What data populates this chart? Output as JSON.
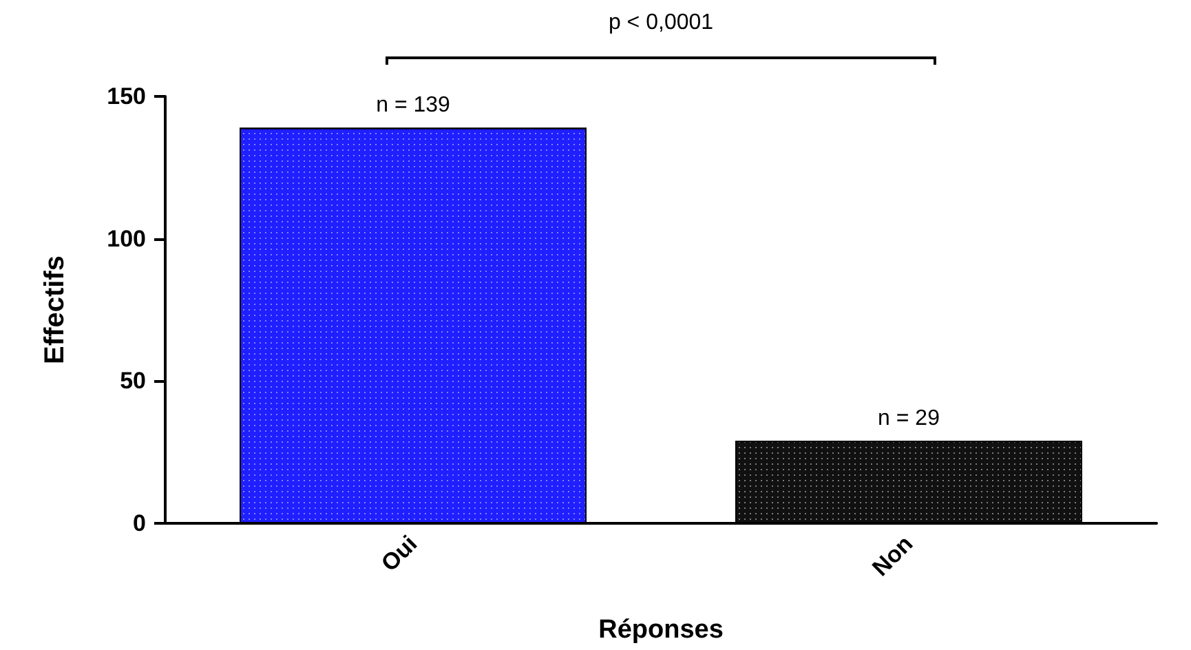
{
  "chart_data": {
    "type": "bar",
    "xlabel": "Réponses",
    "ylabel": "Effectifs",
    "categories": [
      "Oui",
      "Non"
    ],
    "values": [
      139,
      29
    ],
    "colors": [
      "#1f1fff",
      "#111111"
    ],
    "value_labels": [
      "n = 139",
      "n = 29"
    ],
    "ylim": [
      0,
      150
    ],
    "yticks": [
      0,
      50,
      100,
      150
    ],
    "annotations": [
      "p < 0,0001"
    ]
  }
}
